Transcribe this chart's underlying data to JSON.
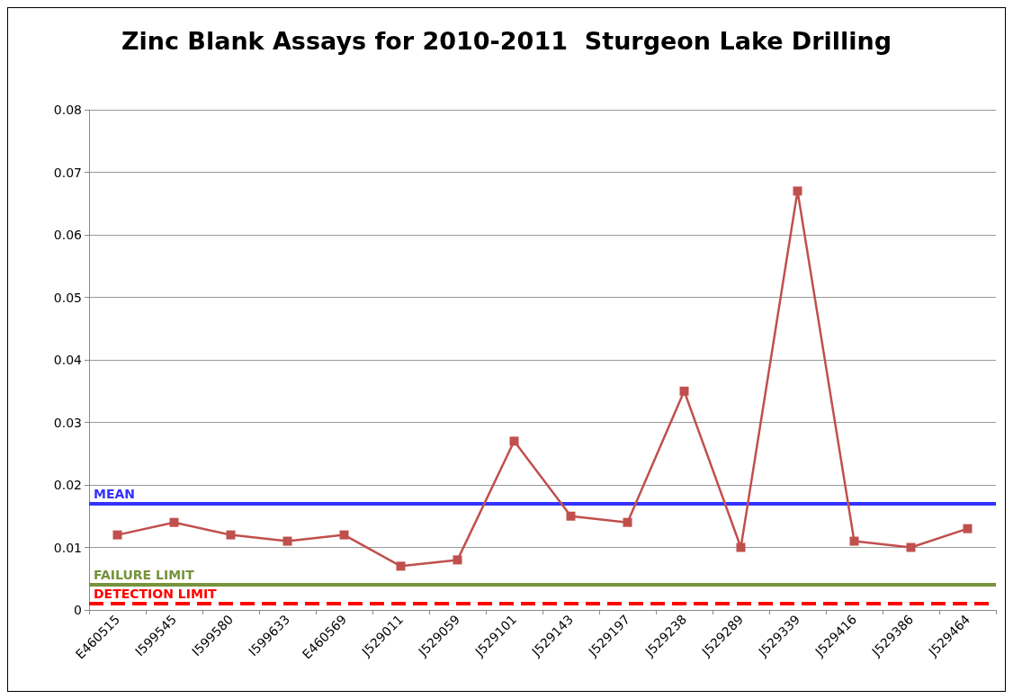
{
  "chart_data": {
    "type": "line",
    "title": "Zinc Blank Assays for 2010-2011  Sturgeon Lake Drilling",
    "categories": [
      "E460515",
      "I599545",
      "I599580",
      "I599633",
      "E460569",
      "J529011",
      "J529059",
      "J529101",
      "J529143",
      "J529197",
      "J529238",
      "J529289",
      "J529339",
      "J529416",
      "J529386",
      "J529464"
    ],
    "series": [
      {
        "color": "#c0504d",
        "values": [
          0.012,
          0.014,
          0.012,
          0.011,
          0.012,
          0.007,
          0.008,
          0.027,
          0.015,
          0.014,
          0.035,
          0.01,
          0.067,
          0.011,
          0.01,
          0.013
        ]
      }
    ],
    "ylim": [
      0,
      0.08
    ],
    "yticks": [
      0,
      0.01,
      0.02,
      0.03,
      0.04,
      0.05,
      0.06,
      0.07,
      0.08
    ],
    "grid": "y",
    "marker": "square",
    "line_style": "solid",
    "ref_lines": [
      {
        "axis": "y",
        "value": 0.017,
        "label": "MEAN",
        "color": "#3333ff",
        "line_style": "solid"
      },
      {
        "axis": "y",
        "value": 0.004,
        "label": "FAILURE LIMIT",
        "color": "#77933c",
        "line_style": "solid"
      },
      {
        "axis": "y",
        "value": 0.001,
        "label": "DETECTION LIMIT",
        "color": "#ff0000",
        "line_style": "dashed"
      }
    ]
  }
}
